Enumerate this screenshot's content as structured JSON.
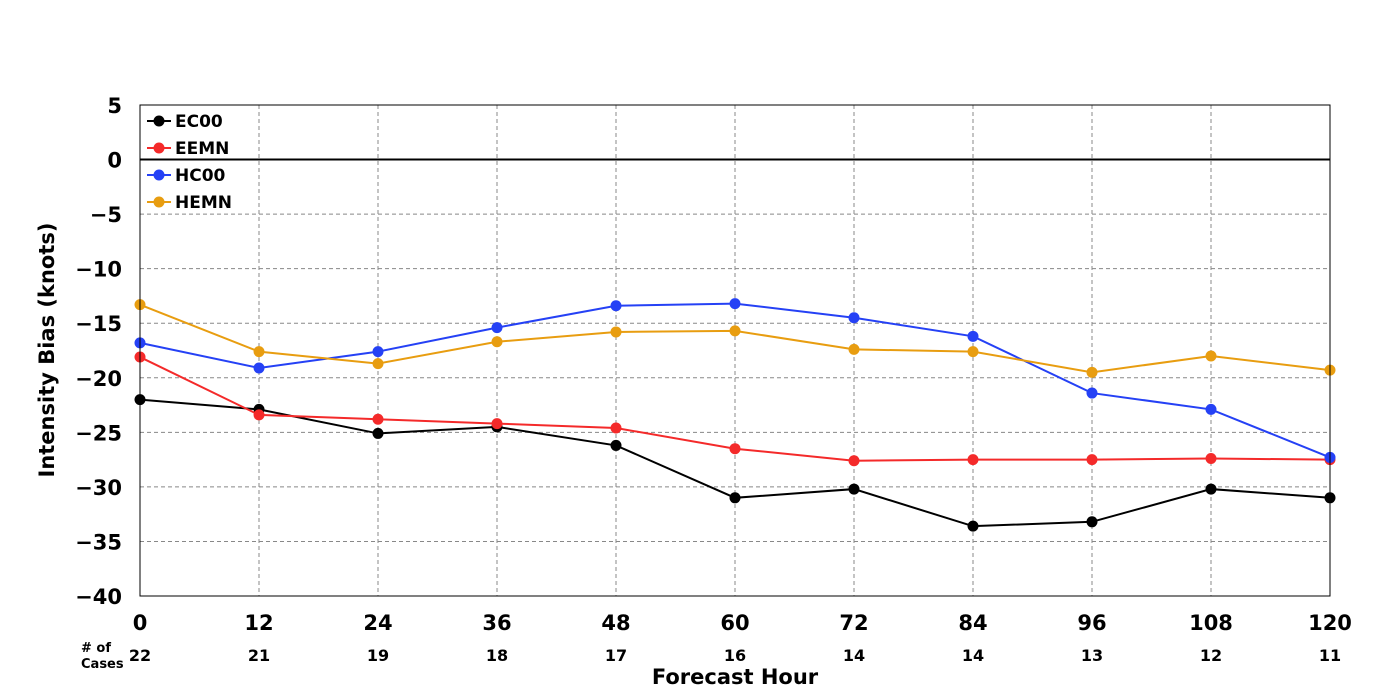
{
  "chart_data": {
    "type": "line",
    "xlabel": "Forecast Hour",
    "ylabel": "Intensity Bias (knots)",
    "x": [
      0,
      12,
      24,
      36,
      48,
      60,
      72,
      84,
      96,
      108,
      120
    ],
    "xlim": [
      0,
      120
    ],
    "ylim": [
      -40,
      5
    ],
    "yticks": [
      5,
      0,
      -5,
      -10,
      -15,
      -20,
      -25,
      -30,
      -35,
      -40
    ],
    "ytick_labels": [
      "5",
      "0",
      "−5",
      "−10",
      "−15",
      "−20",
      "−25",
      "−30",
      "−35",
      "−40"
    ],
    "xtick_labels": [
      "0",
      "12",
      "24",
      "36",
      "48",
      "60",
      "72",
      "84",
      "96",
      "108",
      "120"
    ],
    "grid": true,
    "zero_line": true,
    "legend_position": "top-left",
    "cases_label_line1": "# of",
    "cases_label_line2": "Cases",
    "cases": [
      "22",
      "21",
      "19",
      "18",
      "17",
      "16",
      "14",
      "14",
      "13",
      "12",
      "11"
    ],
    "series": [
      {
        "name": "EC00",
        "color": "#000000",
        "values": [
          -22.0,
          -22.9,
          -25.1,
          -24.5,
          -26.2,
          -31.0,
          -30.2,
          -33.6,
          -33.2,
          -30.2,
          -31.0
        ]
      },
      {
        "name": "EEMN",
        "color": "#f42a2a",
        "values": [
          -18.1,
          -23.4,
          -23.8,
          -24.2,
          -24.6,
          -26.5,
          -27.6,
          -27.5,
          -27.5,
          -27.4,
          -27.5
        ]
      },
      {
        "name": "HC00",
        "color": "#2541f5",
        "values": [
          -16.8,
          -19.1,
          -17.6,
          -15.4,
          -13.4,
          -13.2,
          -14.5,
          -16.2,
          -21.4,
          -22.9,
          -27.3
        ]
      },
      {
        "name": "HEMN",
        "color": "#e89d10",
        "values": [
          -13.3,
          -17.6,
          -18.7,
          -16.7,
          -15.8,
          -15.7,
          -17.4,
          -17.6,
          -19.5,
          -18.0,
          -19.3
        ]
      }
    ]
  }
}
